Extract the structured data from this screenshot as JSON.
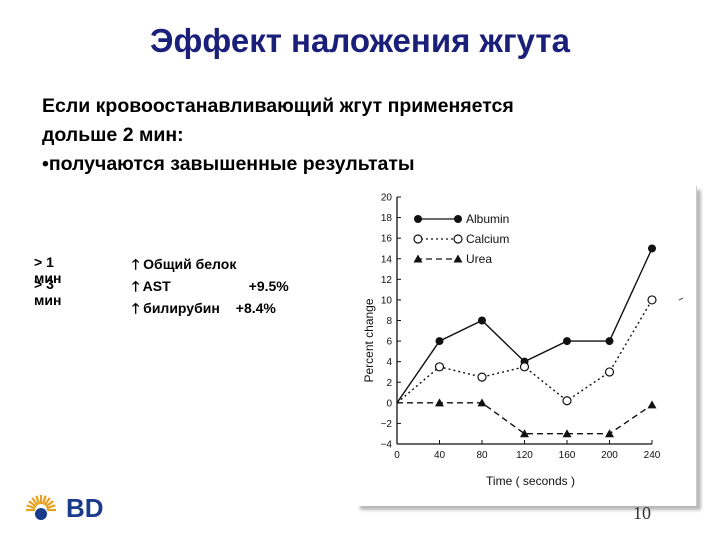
{
  "slide": {
    "title": "Эффект наложения жгута",
    "lines": [
      "Если кровоостанавливающий жгут применяется",
      "дольше 2 мин:",
      "•получаются завышенные результаты"
    ],
    "facts": [
      {
        "key": "> 1 мин",
        "value": "Общий белок",
        "pct": ""
      },
      {
        "key": "> 3 мин",
        "value": "AST",
        "pct": "+9.5%"
      },
      {
        "key": "",
        "value": "билирубин",
        "pct": "+8.4%"
      }
    ],
    "arrow_symbol": "🡑",
    "page_number": "10",
    "logo": {
      "text": "BD",
      "icon": "bd-sunburst-logo",
      "color": "#1a3a8a",
      "accent": "#e8a020"
    }
  },
  "chart_data": {
    "type": "line",
    "x": [
      0,
      40,
      80,
      120,
      160,
      200,
      240
    ],
    "x_ticks": [
      "0",
      "40",
      "80",
      "120",
      "160",
      "200",
      "240"
    ],
    "xlabel": "Time ( seconds )",
    "ylabel": "Percent change",
    "ylim": [
      -4,
      20
    ],
    "y_ticks": [
      "20",
      "18",
      "16",
      "14",
      "12",
      "10",
      "8",
      "6",
      "4",
      "2",
      "0",
      "−2",
      "−4"
    ],
    "grid": false,
    "legend_position": "top-right",
    "series": [
      {
        "name": "Albumin",
        "values": [
          0,
          6,
          8,
          4,
          6,
          6,
          15
        ],
        "marker": "filled-circle",
        "style": "solid"
      },
      {
        "name": "Calcium",
        "values": [
          0,
          3.5,
          2.5,
          3.5,
          0.2,
          3,
          10
        ],
        "marker": "open-circle",
        "style": "dotted"
      },
      {
        "name": "Urea",
        "values": [
          0,
          0,
          0,
          -3,
          -3,
          -3,
          -0.2
        ],
        "marker": "filled-triangle",
        "style": "dashed"
      }
    ]
  }
}
